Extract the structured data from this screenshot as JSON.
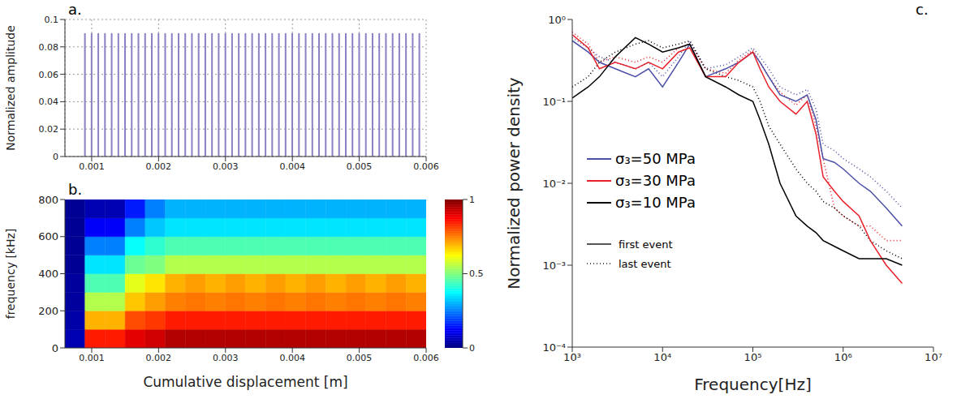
{
  "chart_data": [
    {
      "type": "bar",
      "label": "a.",
      "y_label": "Normalized amplitude",
      "x": [
        0.0009,
        0.001,
        0.0011,
        0.0012,
        0.0013,
        0.0014,
        0.0015,
        0.0016,
        0.0017,
        0.0018,
        0.0019,
        0.002,
        0.0021,
        0.0022,
        0.0023,
        0.0024,
        0.0025,
        0.0026,
        0.0027,
        0.0028,
        0.0029,
        0.003,
        0.0031,
        0.0032,
        0.0033,
        0.0034,
        0.0035,
        0.0036,
        0.0037,
        0.0038,
        0.0039,
        0.004,
        0.0041,
        0.0042,
        0.0043,
        0.0044,
        0.0045,
        0.0046,
        0.0047,
        0.0048,
        0.0049,
        0.005,
        0.0051,
        0.0052,
        0.0053,
        0.0054,
        0.0055,
        0.0056,
        0.0057,
        0.0058,
        0.0059
      ],
      "values": [
        0.09,
        0.09,
        0.09,
        0.09,
        0.09,
        0.09,
        0.09,
        0.09,
        0.09,
        0.09,
        0.09,
        0.09,
        0.09,
        0.09,
        0.09,
        0.09,
        0.09,
        0.09,
        0.09,
        0.09,
        0.09,
        0.09,
        0.09,
        0.09,
        0.09,
        0.09,
        0.09,
        0.09,
        0.09,
        0.09,
        0.09,
        0.09,
        0.09,
        0.09,
        0.09,
        0.09,
        0.09,
        0.09,
        0.09,
        0.09,
        0.09,
        0.09,
        0.09,
        0.09,
        0.09,
        0.09,
        0.09,
        0.09,
        0.09,
        0.09,
        0.09
      ],
      "color": "#8b80c4",
      "xlim": [
        0.0006,
        0.006
      ],
      "xticks": [
        0.001,
        0.002,
        0.003,
        0.004,
        0.005,
        0.006
      ],
      "ylim": [
        0,
        0.1
      ],
      "yticks": [
        0,
        0.02,
        0.04,
        0.06,
        0.08,
        0.1
      ],
      "grid": true
    },
    {
      "type": "heatmap",
      "label": "b.",
      "x_label": "Cumulative displacement [m]",
      "y_label": "frequency [kHz]",
      "x_edges": [
        0.0006,
        0.0009,
        0.0012,
        0.0015,
        0.0018,
        0.0021,
        0.0024,
        0.0027,
        0.003,
        0.0033,
        0.0036,
        0.0039,
        0.0042,
        0.0045,
        0.0048,
        0.0051,
        0.0054,
        0.0057,
        0.006
      ],
      "y_edges": [
        0,
        100,
        200,
        300,
        400,
        500,
        600,
        700,
        800
      ],
      "cells": [
        [
          0.05,
          0.85,
          0.85,
          0.9,
          0.92,
          0.95,
          0.95,
          0.95,
          0.95,
          0.95,
          0.95,
          0.95,
          0.95,
          0.95,
          0.95,
          0.95,
          0.95,
          0.95
        ],
        [
          0.04,
          0.7,
          0.7,
          0.8,
          0.82,
          0.85,
          0.85,
          0.85,
          0.85,
          0.85,
          0.85,
          0.85,
          0.85,
          0.85,
          0.85,
          0.85,
          0.85,
          0.85
        ],
        [
          0.03,
          0.55,
          0.55,
          0.68,
          0.72,
          0.75,
          0.76,
          0.75,
          0.76,
          0.75,
          0.76,
          0.75,
          0.76,
          0.75,
          0.76,
          0.75,
          0.76,
          0.75
        ],
        [
          0.03,
          0.45,
          0.45,
          0.6,
          0.65,
          0.7,
          0.72,
          0.7,
          0.72,
          0.7,
          0.72,
          0.7,
          0.72,
          0.7,
          0.72,
          0.7,
          0.72,
          0.7
        ],
        [
          0.02,
          0.35,
          0.35,
          0.48,
          0.5,
          0.55,
          0.55,
          0.55,
          0.55,
          0.55,
          0.55,
          0.55,
          0.55,
          0.55,
          0.55,
          0.55,
          0.55,
          0.55
        ],
        [
          0.02,
          0.25,
          0.25,
          0.38,
          0.42,
          0.45,
          0.45,
          0.45,
          0.45,
          0.45,
          0.45,
          0.45,
          0.45,
          0.45,
          0.45,
          0.45,
          0.45,
          0.45
        ],
        [
          0.02,
          0.12,
          0.12,
          0.25,
          0.32,
          0.35,
          0.35,
          0.35,
          0.35,
          0.35,
          0.35,
          0.35,
          0.35,
          0.35,
          0.35,
          0.35,
          0.35,
          0.35
        ],
        [
          0.02,
          0.05,
          0.05,
          0.15,
          0.25,
          0.3,
          0.3,
          0.3,
          0.3,
          0.3,
          0.3,
          0.3,
          0.3,
          0.3,
          0.3,
          0.3,
          0.3,
          0.3
        ]
      ],
      "xlim": [
        0.0006,
        0.006
      ],
      "xticks": [
        0.001,
        0.002,
        0.003,
        0.004,
        0.005,
        0.006
      ],
      "ylim": [
        0,
        800
      ],
      "yticks": [
        0,
        200,
        400,
        600,
        800
      ],
      "colorbar": {
        "range": [
          0,
          1
        ],
        "ticks": [
          0,
          0.5,
          1
        ]
      }
    },
    {
      "type": "line",
      "label": "c.",
      "x_label": "Frequency[Hz]",
      "y_label": "Normalized power density",
      "log": true,
      "legend": "left",
      "x": [
        1000,
        1500,
        2000,
        3000,
        5000,
        7000,
        10000,
        15000,
        20000,
        30000,
        50000,
        70000,
        100000,
        120000,
        150000,
        200000,
        300000,
        400000,
        500000,
        600000,
        800000,
        1000000,
        1500000,
        2000000,
        3000000,
        4500000
      ],
      "series": [
        {
          "name": "σ₃=50 MPa",
          "color": "#4b4fa6",
          "line_style": "dotted",
          "values": [
            0.6,
            0.45,
            0.35,
            0.3,
            0.25,
            0.3,
            0.2,
            0.35,
            0.55,
            0.25,
            0.28,
            0.35,
            0.45,
            0.35,
            0.25,
            0.15,
            0.12,
            0.14,
            0.08,
            0.03,
            0.025,
            0.02,
            0.015,
            0.012,
            0.008,
            0.005
          ]
        },
        {
          "name": "σ₃=30 MPa",
          "color": "#e8202a",
          "line_style": "dotted",
          "values": [
            0.7,
            0.5,
            0.3,
            0.35,
            0.3,
            0.35,
            0.3,
            0.45,
            0.5,
            0.25,
            0.22,
            0.32,
            0.42,
            0.3,
            0.2,
            0.13,
            0.09,
            0.12,
            0.05,
            0.02,
            0.005,
            0.004,
            0.003,
            0.003,
            0.002,
            0.002
          ]
        },
        {
          "name": "σ₃=10 MPa",
          "color": "#000000",
          "line_style": "dotted",
          "values": [
            0.15,
            0.2,
            0.3,
            0.4,
            0.5,
            0.55,
            0.45,
            0.5,
            0.55,
            0.25,
            0.2,
            0.18,
            0.15,
            0.1,
            0.05,
            0.03,
            0.015,
            0.01,
            0.008,
            0.006,
            0.005,
            0.004,
            0.003,
            0.002,
            0.0015,
            0.0012
          ]
        },
        {
          "name": "σ₃=50 MPa",
          "color": "#4b4fa6",
          "line_style": "solid",
          "values": [
            0.55,
            0.4,
            0.3,
            0.25,
            0.2,
            0.25,
            0.15,
            0.3,
            0.5,
            0.2,
            0.25,
            0.3,
            0.4,
            0.3,
            0.2,
            0.12,
            0.1,
            0.12,
            0.06,
            0.02,
            0.018,
            0.015,
            0.01,
            0.008,
            0.005,
            0.003
          ]
        },
        {
          "name": "σ₃=30 MPa",
          "color": "#e8202a",
          "line_style": "solid",
          "values": [
            0.65,
            0.45,
            0.25,
            0.3,
            0.25,
            0.3,
            0.25,
            0.4,
            0.45,
            0.2,
            0.2,
            0.3,
            0.4,
            0.25,
            0.15,
            0.1,
            0.07,
            0.1,
            0.04,
            0.012,
            0.008,
            0.006,
            0.004,
            0.002,
            0.001,
            0.0006
          ]
        },
        {
          "name": "σ₃=10 MPa",
          "color": "#000000",
          "line_style": "solid",
          "values": [
            0.11,
            0.15,
            0.2,
            0.35,
            0.6,
            0.5,
            0.4,
            0.45,
            0.5,
            0.2,
            0.15,
            0.12,
            0.1,
            0.06,
            0.03,
            0.01,
            0.004,
            0.003,
            0.0025,
            0.002,
            0.0017,
            0.0015,
            0.0012,
            0.0012,
            0.0012,
            0.001
          ]
        }
      ],
      "legend_order": [
        "σ₃=50 MPa",
        "σ₃=30 MPa",
        "σ₃=10 MPa"
      ],
      "line_styles": [
        {
          "label": "first event",
          "line_style": "solid"
        },
        {
          "label": "last event",
          "line_style": "dotted"
        }
      ],
      "xlim": [
        1000,
        10000000
      ],
      "xticks": [
        {
          "value": 1000,
          "label": "10³"
        },
        {
          "value": 10000,
          "label": "10⁴"
        },
        {
          "value": 100000,
          "label": "10⁵"
        },
        {
          "value": 1000000,
          "label": "10⁶"
        },
        {
          "value": 10000000,
          "label": "10⁷"
        }
      ],
      "ylim": [
        0.0001,
        1
      ],
      "yticks": [
        {
          "value": 0.0001,
          "label": "10⁻⁴"
        },
        {
          "value": 0.001,
          "label": "10⁻³"
        },
        {
          "value": 0.01,
          "label": "10⁻²"
        },
        {
          "value": 0.1,
          "label": "10⁻¹"
        },
        {
          "value": 1,
          "label": "10⁰"
        }
      ]
    }
  ]
}
